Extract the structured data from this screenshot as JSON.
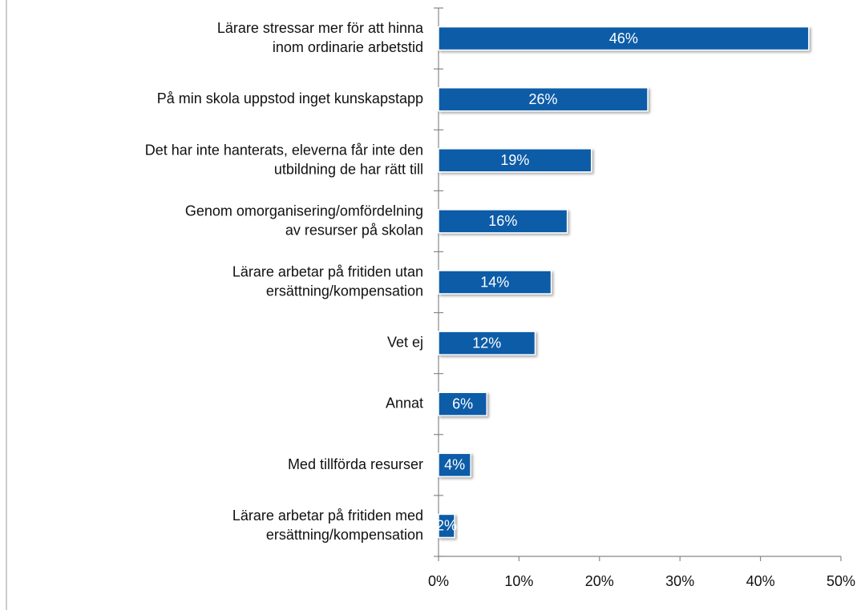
{
  "chart_data": {
    "type": "bar",
    "orientation": "horizontal",
    "categories": [
      [
        "Lärare stressar mer för att hinna",
        "inom ordinarie arbetstid"
      ],
      [
        "På min skola uppstod inget kunskapstapp"
      ],
      [
        "Det har inte hanterats, eleverna får inte den",
        "utbildning de har rätt till"
      ],
      [
        "Genom omorganisering/omfördelning",
        "av resurser på skolan"
      ],
      [
        "Lärare arbetar på fritiden utan",
        "ersättning/kompensation"
      ],
      [
        "Vet ej"
      ],
      [
        "Annat"
      ],
      [
        "Med tillförda resurser"
      ],
      [
        "Lärare arbetar på fritiden med",
        "ersättning/kompensation"
      ]
    ],
    "values": [
      46,
      26,
      19,
      16,
      14,
      12,
      6,
      4,
      2
    ],
    "value_labels": [
      "46%",
      "26%",
      "19%",
      "16%",
      "14%",
      "12%",
      "6%",
      "4%",
      "2%"
    ],
    "color": "#0b5ca8",
    "xlim": [
      0,
      50
    ],
    "xticks": [
      {
        "value": 0,
        "label": "0%"
      },
      {
        "value": 10,
        "label": "10%"
      },
      {
        "value": 20,
        "label": "20%"
      },
      {
        "value": 30,
        "label": "30%"
      },
      {
        "value": 40,
        "label": "40%"
      },
      {
        "value": 50,
        "label": "50%"
      }
    ]
  }
}
